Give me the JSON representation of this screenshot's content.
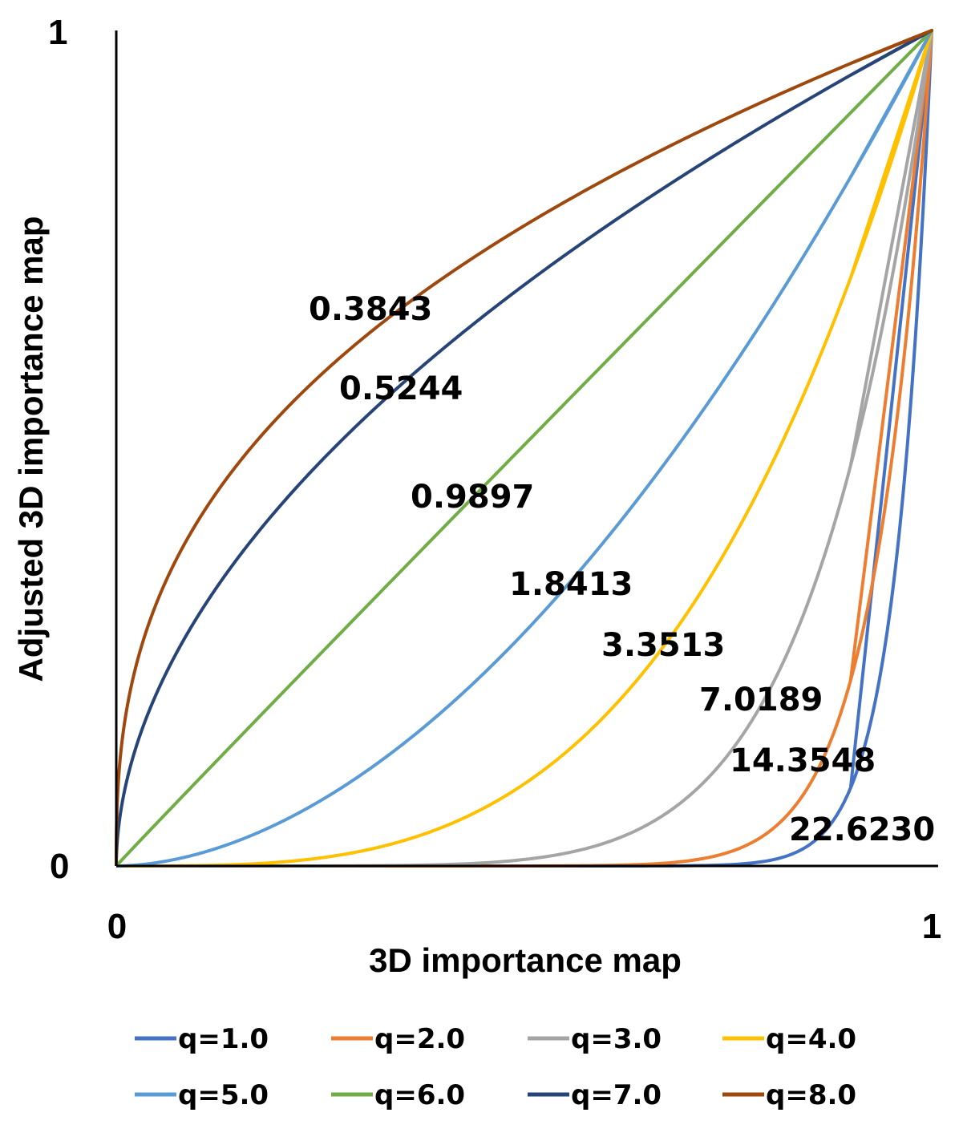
{
  "chart_data": {
    "type": "line",
    "title": "",
    "xlabel": "3D importance map",
    "ylabel": "Adjusted 3D importance map",
    "xlim": [
      0,
      1
    ],
    "ylim": [
      0,
      1
    ],
    "x_ticks": [
      "0",
      "1"
    ],
    "y_ticks": [
      "0",
      "1"
    ],
    "grid": false,
    "legend_position": "bottom",
    "series": [
      {
        "name": "q=1.0",
        "color": "#4472C4",
        "exponent": 22.623
      },
      {
        "name": "q=2.0",
        "color": "#ED7D31",
        "exponent": 14.3548
      },
      {
        "name": "q=3.0",
        "color": "#A5A5A5",
        "exponent": 7.0189
      },
      {
        "name": "q=4.0",
        "color": "#FFC000",
        "exponent": 3.3513
      },
      {
        "name": "q=5.0",
        "color": "#5B9BD5",
        "exponent": 1.8413
      },
      {
        "name": "q=6.0",
        "color": "#70AD47",
        "exponent": 0.9897
      },
      {
        "name": "q=7.0",
        "color": "#264478",
        "exponent": 0.5244
      },
      {
        "name": "q=8.0",
        "color": "#9E480E",
        "exponent": 0.3843
      }
    ],
    "annotations": [
      {
        "text": "0.3843"
      },
      {
        "text": "0.5244"
      },
      {
        "text": "0.9897"
      },
      {
        "text": "1.8413"
      },
      {
        "text": "3.3513"
      },
      {
        "text": "7.0189"
      },
      {
        "text": "14.3548"
      },
      {
        "text": "22.6230"
      }
    ]
  }
}
